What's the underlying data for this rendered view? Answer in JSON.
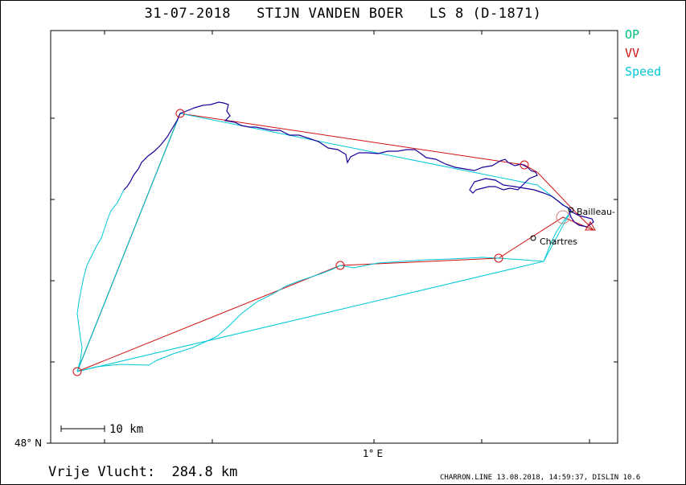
{
  "title": "31-07-2018   STIJN VANDEN BOER   LS 8 (D-1871)",
  "legend": {
    "op": {
      "label": "OP",
      "color": "#00c080"
    },
    "vv": {
      "label": "VV",
      "color": "#d01010"
    },
    "speed": {
      "label": "Speed",
      "color": "#00c8d8"
    }
  },
  "track_color": "#1a0099",
  "places": {
    "bailleau": "Bailleau-",
    "chartres": "Chartres"
  },
  "scale_bar": {
    "label": "10  km"
  },
  "axes": {
    "lat_label": "48° N",
    "lon_label": "1° E"
  },
  "distance": {
    "text": "Vrije Vlucht:  284.8 km"
  },
  "footer": "CHARRON.LINE 13.08.2018, 14:59:37, DISLIN 10.6"
}
